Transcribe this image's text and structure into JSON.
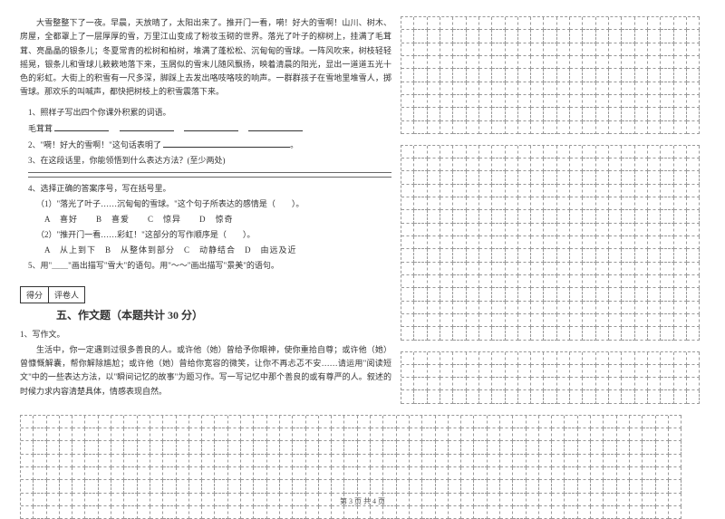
{
  "passage": {
    "text": "大雪整整下了一夜。早晨，天放晴了，太阳出来了。推开门一看，嗬！好大的雪啊！山川、树木、房屋，全都罩上了一层厚厚的雪，万里江山变成了粉妆玉砌的世界。落光了叶子的柳树上，挂满了毛茸茸、亮晶晶的银条儿；冬夏常青的松树和柏树，堆满了蓬松松、沉甸甸的雪球。一阵风吹来，树枝轻轻摇晃，银条儿和雪球儿簌簌地落下来，玉屑似的雪末儿随风飘扬，映着清晨的阳光，显出一道道五光十色的彩虹。大街上的积雪有一尺多深，脚踩上去发出咯吱咯吱的响声。一群群孩子在雪地里堆雪人，掷雪球。那欢乐的叫喊声，都快把树枝上的积雪震落下来。"
  },
  "q1": {
    "stem": "1、照样子写出四个你课外积累的词语。",
    "example": "毛茸茸"
  },
  "q2": {
    "stem": "2、\"嗬！好大的雪啊！\"这句话表明了"
  },
  "q3": {
    "stem": "3、在这段话里，你能领悟到什么表达方法？(至少两处)"
  },
  "q4": {
    "stem": "4、选择正确的答案序号，写在括号里。",
    "sub1": "（1）\"落光了叶子……沉甸甸的雪球。\"这个句子所表达的感情是（　　）。",
    "opts1": "A　喜好　　B　喜爱　　C　惊异　　D　惊奇",
    "sub2": "（2）\"推开门一看……彩虹！\"这部分的写作顺序是（　　）。",
    "opts2": "A　从上到下　B　从整体到部分　C　动静结合　D　由远及近"
  },
  "q5": {
    "stem": "5、用\"＿＿\"画出描写\"雪大\"的语句。用\"～～\"画出描写\"景美\"的语句。"
  },
  "scorebox": {
    "left": "得分",
    "right": "评卷人"
  },
  "section5": {
    "title": "五、作文题（本题共计 30 分）",
    "q": "1、写作文。",
    "prompt": "生活中，你一定遇到过很多善良的人。或许他（她）曾给予你眼神，使你重拾自尊；或许他（她）曾慷慨解囊，帮你解除尴尬；或许他（她）曾给你宽容的微笑，让你不再忐忑不安……请运用\"阅读短文\"中的一些表达方法，以\"瞬间记忆的故事\"为题习作。写一写记忆中那个善良的或有尊严的人。叙述的时候力求内容清楚具体，情感表现自然。"
  },
  "grids": {
    "right_cols": 23,
    "right1_rows": 9,
    "right2_rows": 15,
    "right3_rows": 4,
    "bottom_cols": 51,
    "bottom_rows": 8
  },
  "footer": "第 3 页 共 4 页"
}
